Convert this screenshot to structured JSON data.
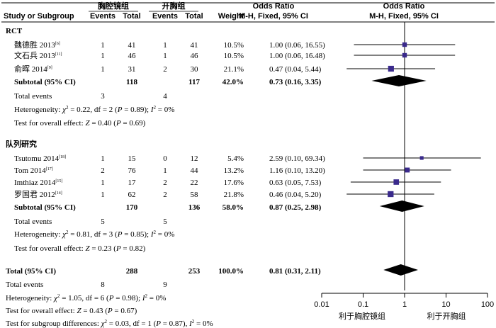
{
  "headers": {
    "study": "Study or Subgroup",
    "group1": "胸腔镜组",
    "group2": "开胸组",
    "events1": "Events",
    "total1": "Total",
    "events2": "Events",
    "total2": "Total",
    "weight": "Weight",
    "or_title_text": "Odds Ratio",
    "or_method_text": "M-H, Fixed, 95% CI",
    "or_title_plot": "Odds Ratio",
    "or_method_plot": "M-H, Fixed, 95% CI"
  },
  "colors": {
    "marker": "#3a2a8c",
    "diamond": "#000000"
  },
  "chart_data": {
    "type": "forest",
    "scale": "log",
    "xlim": [
      0.01,
      100
    ],
    "ticks": [
      "0.01",
      "0.1",
      "1",
      "10",
      "100"
    ],
    "tick_values": [
      0.01,
      0.1,
      1,
      10,
      100
    ],
    "favours_left": "利于胸腔镜组",
    "favours_right": "利于开胸组",
    "groups": [
      {
        "label": "RCT",
        "studies": [
          {
            "name": "魏德胜 2013",
            "ref": "[6]",
            "e1": "1",
            "t1": "41",
            "e2": "1",
            "t2": "41",
            "weight": "10.5%",
            "ci_text": "1.00 (0.06, 16.55)",
            "or": 1.0,
            "lo": 0.06,
            "hi": 16.55
          },
          {
            "name": "文石兵 2013",
            "ref": "[11]",
            "e1": "1",
            "t1": "46",
            "e2": "1",
            "t2": "46",
            "weight": "10.5%",
            "ci_text": "1.00 (0.06, 16.48)",
            "or": 1.0,
            "lo": 0.06,
            "hi": 16.48
          },
          {
            "name": "俞晖 2014",
            "ref": "[9]",
            "e1": "1",
            "t1": "31",
            "e2": "2",
            "t2": "30",
            "weight": "21.1%",
            "ci_text": "0.47 (0.04, 5.44)",
            "or": 0.47,
            "lo": 0.04,
            "hi": 5.44
          }
        ],
        "subtotal": {
          "label": "Subtotal (95% CI)",
          "t1": "118",
          "t2": "117",
          "weight": "42.0%",
          "ci_text": "0.73 (0.16, 3.35)",
          "or": 0.73,
          "lo": 0.16,
          "hi": 3.35
        },
        "total_events": {
          "label": "Total events",
          "e1": "3",
          "e2": "4"
        },
        "heterogeneity": {
          "prefix": "Heterogeneity: ",
          "chi": "χ",
          "rest": " = 0.22, df = 2 (",
          "p": "P",
          "pval": " = 0.89); ",
          "i": "I",
          "ival": " = 0%"
        },
        "overall": {
          "prefix": "Test for overall effect: ",
          "z": "Z",
          "rest": " = 0.40 (",
          "p": "P",
          "pval": " = 0.69)"
        }
      },
      {
        "label": "队列研究",
        "studies": [
          {
            "name": "Tsutomu 2014",
            "ref": "[18]",
            "e1": "1",
            "t1": "15",
            "e2": "0",
            "t2": "12",
            "weight": "5.4%",
            "ci_text": "2.59 (0.10, 69.34)",
            "or": 2.59,
            "lo": 0.1,
            "hi": 69.34
          },
          {
            "name": "Tom 2014",
            "ref": "[17]",
            "e1": "2",
            "t1": "76",
            "e2": "1",
            "t2": "44",
            "weight": "13.2%",
            "ci_text": "1.16 (0.10, 13.20)",
            "or": 1.16,
            "lo": 0.1,
            "hi": 13.2
          },
          {
            "name": "Imthiaz 2014",
            "ref": "[15]",
            "e1": "1",
            "t1": "17",
            "e2": "2",
            "t2": "22",
            "weight": "17.6%",
            "ci_text": "0.63 (0.05, 7.53)",
            "or": 0.63,
            "lo": 0.05,
            "hi": 7.53
          },
          {
            "name": "罗国君 2012",
            "ref": "[14]",
            "e1": "1",
            "t1": "62",
            "e2": "2",
            "t2": "58",
            "weight": "21.8%",
            "ci_text": "0.46 (0.04, 5.20)",
            "or": 0.46,
            "lo": 0.04,
            "hi": 5.2
          }
        ],
        "subtotal": {
          "label": "Subtotal (95% CI)",
          "t1": "170",
          "t2": "136",
          "weight": "58.0%",
          "ci_text": "0.87 (0.25, 2.98)",
          "or": 0.87,
          "lo": 0.25,
          "hi": 2.98
        },
        "total_events": {
          "label": "Total events",
          "e1": "5",
          "e2": "5"
        },
        "heterogeneity": {
          "prefix": "Heterogeneity: ",
          "chi": "χ",
          "rest": " = 0.81, df = 3 (",
          "p": "P",
          "pval": " = 0.85); ",
          "i": "I",
          "ival": " = 0%"
        },
        "overall": {
          "prefix": "Test for overall effect: ",
          "z": "Z",
          "rest": " = 0.23 (",
          "p": "P",
          "pval": " = 0.82)"
        }
      }
    ],
    "total": {
      "label": "Total (95% CI)",
      "t1": "288",
      "t2": "253",
      "weight": "100.0%",
      "ci_text": "0.81 (0.31, 2.11)",
      "or": 0.81,
      "lo": 0.31,
      "hi": 2.11
    },
    "total_events": {
      "label": "Total events",
      "e1": "8",
      "e2": "9"
    },
    "heterogeneity": {
      "prefix": "Heterogeneity: ",
      "chi": "χ",
      "rest": " = 1.05, df = 6 (",
      "p": "P",
      "pval": " = 0.98); ",
      "i": "I",
      "ival": " = 0%"
    },
    "overall": {
      "prefix": "Test for overall effect: ",
      "z": "Z",
      "rest": " = 0.43 (",
      "p": "P",
      "pval": " = 0.67)"
    },
    "subgroup_diff": {
      "prefix": "Test for subgroup differences: ",
      "chi": "χ",
      "rest": " = 0.03, df = 1 (",
      "p": "P",
      "pval": " = 0.87), ",
      "i": "I",
      "ival": " = 0%"
    }
  }
}
